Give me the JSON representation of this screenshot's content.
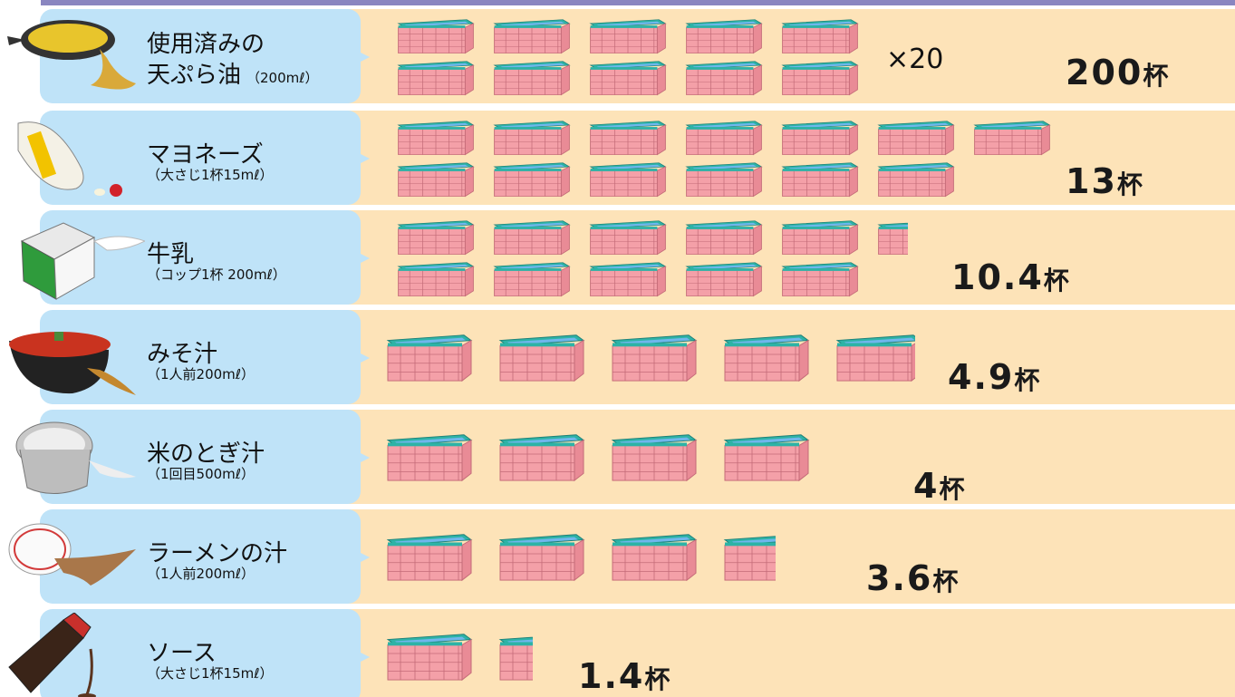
{
  "chart_data": {
    "type": "bar",
    "categories": [
      "使用済みの天ぷら油",
      "マヨネーズ",
      "牛乳",
      "みそ汁",
      "米のとぎ汁",
      "ラーメンの汁",
      "ソース"
    ],
    "values": [
      200,
      13,
      10.4,
      4.9,
      4,
      3.6,
      1.4
    ],
    "unit": "杯",
    "multiplier_note": "×20",
    "items": [
      {
        "name_line1": "使用済みの",
        "name_line2": "天ぷら油",
        "amount": "（200mℓ）",
        "value": 200,
        "value_text": "200",
        "icon": "frying-pan-oil-icon"
      },
      {
        "name_line1": "マヨネーズ",
        "name_line2": "",
        "amount": "（大さじ1杯15mℓ）",
        "value": 13,
        "value_text": "13",
        "icon": "mayonnaise-bottle-icon"
      },
      {
        "name_line1": "牛乳",
        "name_line2": "",
        "amount": "（コップ1杯 200mℓ）",
        "value": 10.4,
        "value_text": "10.4",
        "icon": "milk-carton-icon"
      },
      {
        "name_line1": "みそ汁",
        "name_line2": "",
        "amount": "（1人前200mℓ）",
        "value": 4.9,
        "value_text": "4.9",
        "icon": "miso-soup-bowl-icon"
      },
      {
        "name_line1": "米のとぎ汁",
        "name_line2": "",
        "amount": "（1回目500mℓ）",
        "value": 4,
        "value_text": "4",
        "icon": "rice-pot-icon"
      },
      {
        "name_line1": "ラーメンの汁",
        "name_line2": "",
        "amount": "（1人前200mℓ）",
        "value": 3.6,
        "value_text": "3.6",
        "icon": "ramen-bowl-icon"
      },
      {
        "name_line1": "ソース",
        "name_line2": "",
        "amount": "（大さじ1杯15mℓ）",
        "value": 1.4,
        "value_text": "1.4",
        "icon": "sauce-bottle-icon"
      }
    ]
  },
  "colors": {
    "band": "#fde3b8",
    "label_box": "#bfe3f8",
    "tub_brick": "#f4a0a8",
    "tub_rim": "#2db3a6",
    "tub_water": "#6fb6ec"
  }
}
